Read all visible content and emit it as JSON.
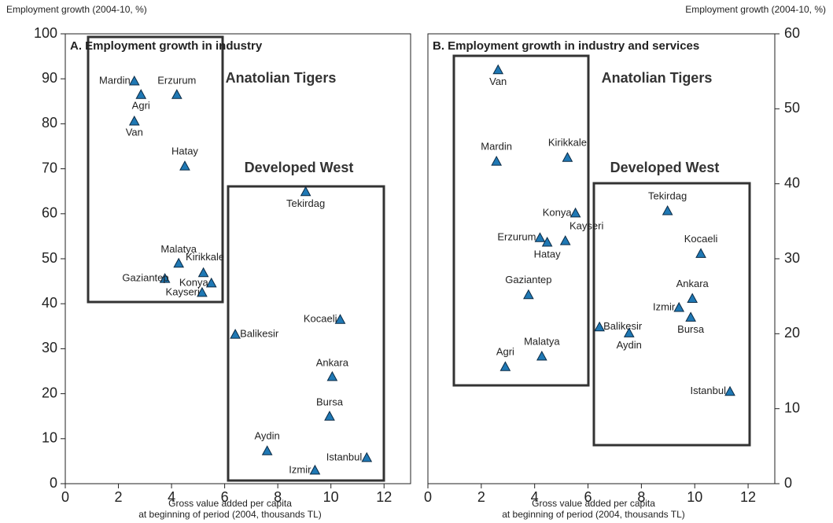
{
  "chart_data": [
    {
      "type": "scatter",
      "title": "A. Employment growth in industry",
      "ylabel": "Employment growth (2004-10, %)",
      "xlabel": [
        "Gross value added per capita",
        "at beginning of period (2004, thousands TL)"
      ],
      "annotations": [
        "Anatolian Tigers",
        "Developed West"
      ],
      "labels": [
        "Mardin",
        "Agri",
        "Erzurum",
        "Van",
        "Hatay",
        "Tekirdag",
        "Malatya",
        "Kirikkale",
        "Gaziantep",
        "Konya",
        "Kayseri",
        "Balikesir",
        "Kocaeli",
        "Ankara",
        "Bursa",
        "Aydin",
        "Istanbul",
        "Izmir"
      ],
      "x": [
        2.6,
        2.85,
        4.2,
        2.6,
        4.5,
        9.05,
        4.27,
        5.2,
        3.75,
        5.5,
        5.15,
        6.4,
        10.35,
        10.05,
        9.95,
        7.6,
        11.35,
        9.4
      ],
      "values": [
        89.5,
        86.5,
        86.5,
        80.6,
        70.6,
        64.9,
        49,
        46.9,
        45.6,
        44.6,
        42.5,
        33.2,
        36.5,
        23.8,
        15,
        7.3,
        5.8,
        3
      ],
      "color": "#1f78b4",
      "xlim": [
        0,
        13
      ],
      "xticks": [
        0,
        2,
        4,
        6,
        8,
        10,
        12
      ],
      "ylim": [
        0,
        100
      ],
      "yticks": [
        0,
        10,
        20,
        30,
        40,
        50,
        60,
        70,
        80,
        90,
        100
      ],
      "yaxis": "left"
    },
    {
      "type": "scatter",
      "title": "B. Employment growth in industry and services",
      "ylabel": "Employment growth (2004-10, %)",
      "xlabel": [
        "Gross value added per capita",
        "at beginning of period (2004, thousands TL)"
      ],
      "annotations": [
        "Anatolian Tigers",
        "Developed West"
      ],
      "labels": [
        "Van",
        "Mardin",
        "Kirikkale",
        "Konya",
        "Erzurum",
        "Hatay",
        "Kayseri",
        "Gaziantep",
        "Agri",
        "Malatya",
        "Tekirdag",
        "Kocaeli",
        "Ankara",
        "Izmir",
        "Bursa",
        "Balikesir",
        "Aydin",
        "Istanbul"
      ],
      "x": [
        2.63,
        2.57,
        5.23,
        5.53,
        4.2,
        4.47,
        5.15,
        3.77,
        2.9,
        4.27,
        8.98,
        10.23,
        9.91,
        9.41,
        9.85,
        6.43,
        7.54,
        11.32
      ],
      "values": [
        55.2,
        43,
        43.5,
        36.1,
        32.8,
        32.2,
        32.4,
        25.2,
        15.6,
        17,
        36.4,
        30.7,
        24.7,
        23.5,
        22.2,
        20.9,
        20.1,
        12.3
      ],
      "color": "#1f78b4",
      "xlim": [
        0,
        13
      ],
      "xticks": [
        0,
        2,
        4,
        6,
        8,
        10,
        12
      ],
      "ylim": [
        0,
        60
      ],
      "yticks": [
        0,
        10,
        20,
        30,
        40,
        50,
        60
      ],
      "yaxis": "right"
    }
  ]
}
